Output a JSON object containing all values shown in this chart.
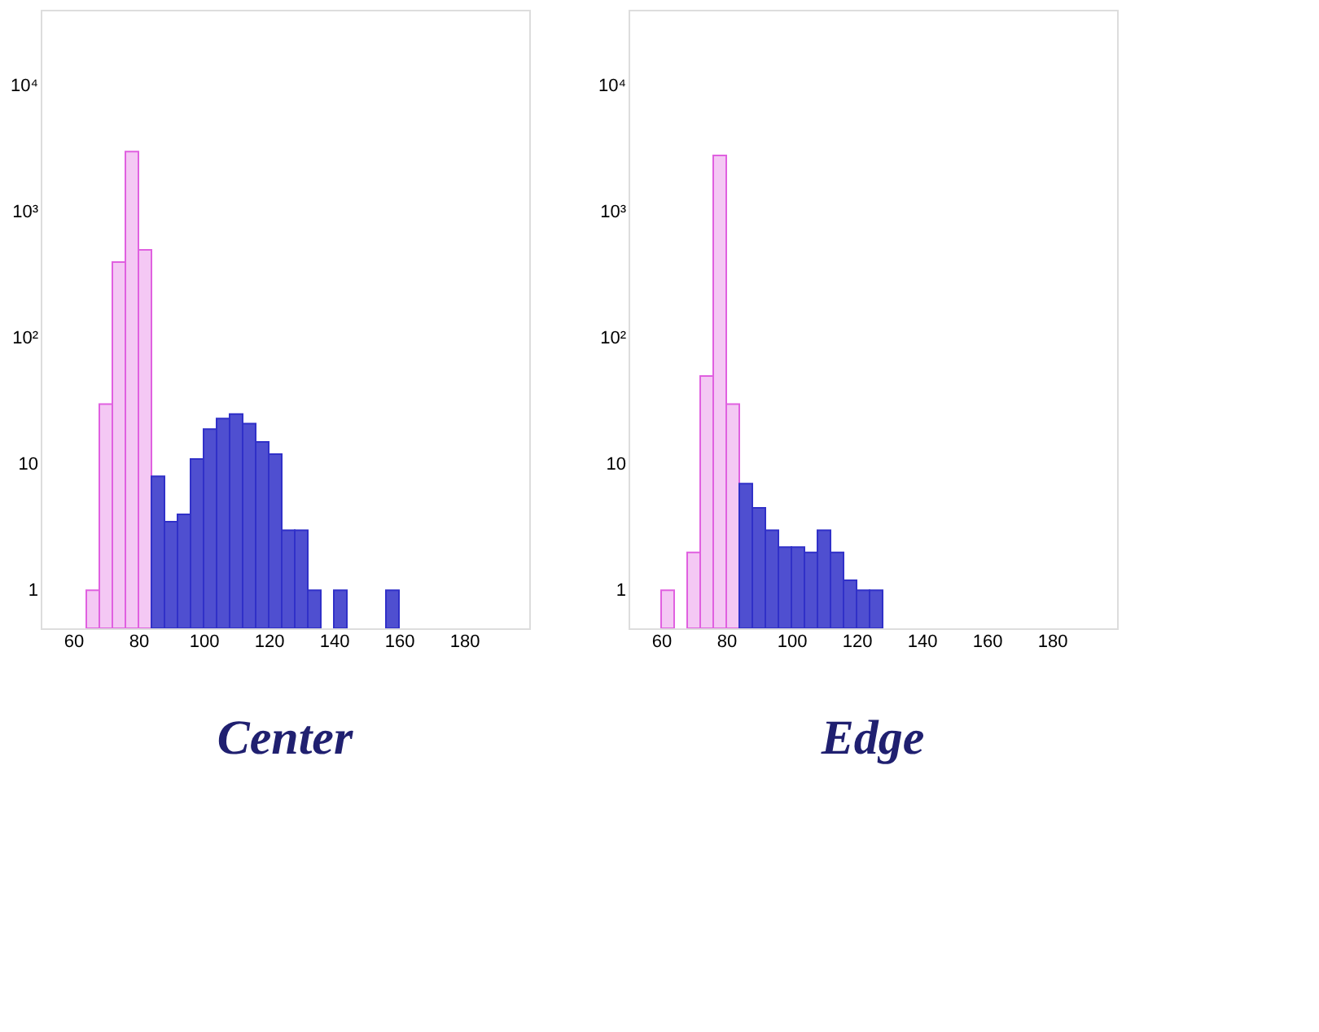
{
  "chart_data": [
    {
      "type": "histogram",
      "title": "Center",
      "log": "y",
      "grid": false,
      "bins": [
        60,
        64,
        68,
        72,
        76,
        80,
        84,
        88,
        92,
        96,
        100,
        104,
        108,
        112,
        116,
        120,
        124,
        128,
        132,
        136,
        140,
        144,
        148,
        152,
        156,
        160
      ],
      "series": [
        {
          "color": "#e060e0",
          "values": [
            null,
            1,
            30,
            400,
            3000,
            500,
            null,
            null,
            null,
            null,
            null,
            null,
            null,
            null,
            null,
            null,
            null,
            null,
            null,
            null,
            null,
            null,
            null,
            null,
            null
          ]
        },
        {
          "color": "#3030c8",
          "values": [
            null,
            null,
            null,
            null,
            null,
            null,
            8,
            3.5,
            4,
            11,
            19,
            23,
            25,
            21,
            15,
            12,
            3,
            3,
            1,
            null,
            1,
            null,
            null,
            null,
            1
          ]
        }
      ],
      "xlim": [
        50,
        200
      ],
      "xticks": [
        60,
        80,
        100,
        120,
        140,
        160,
        180
      ],
      "ylim": [
        0.5,
        40000
      ],
      "yticks": [
        1,
        10,
        {
          "value": 100,
          "label": "10²"
        },
        {
          "value": 1000,
          "label": "10³"
        },
        {
          "value": 10000,
          "label": "10⁴"
        }
      ]
    },
    {
      "type": "histogram",
      "title": "Edge",
      "log": "y",
      "grid": false,
      "bins": [
        60,
        64,
        68,
        72,
        76,
        80,
        84,
        88,
        92,
        96,
        100,
        104,
        108,
        112,
        116,
        120,
        124,
        128,
        132,
        136,
        140,
        144,
        148,
        152,
        156,
        160
      ],
      "series": [
        {
          "color": "#e060e0",
          "values": [
            1,
            null,
            2,
            50,
            2800,
            30,
            null,
            null,
            null,
            null,
            null,
            null,
            null,
            null,
            null,
            null,
            null,
            null,
            null,
            null,
            null,
            null,
            null,
            null,
            null
          ]
        },
        {
          "color": "#3030c8",
          "values": [
            null,
            null,
            null,
            null,
            null,
            null,
            7,
            4.5,
            3,
            2.2,
            2.2,
            2,
            3,
            2,
            1.2,
            1,
            1,
            null,
            null,
            null,
            null,
            null,
            null,
            null,
            null
          ]
        }
      ],
      "xlim": [
        50,
        200
      ],
      "xticks": [
        60,
        80,
        100,
        120,
        140,
        160,
        180
      ],
      "ylim": [
        0.5,
        40000
      ],
      "yticks": [
        1,
        10,
        {
          "value": 100,
          "label": "10²"
        },
        {
          "value": 1000,
          "label": "10³"
        },
        {
          "value": 10000,
          "label": "10⁴"
        }
      ]
    }
  ]
}
